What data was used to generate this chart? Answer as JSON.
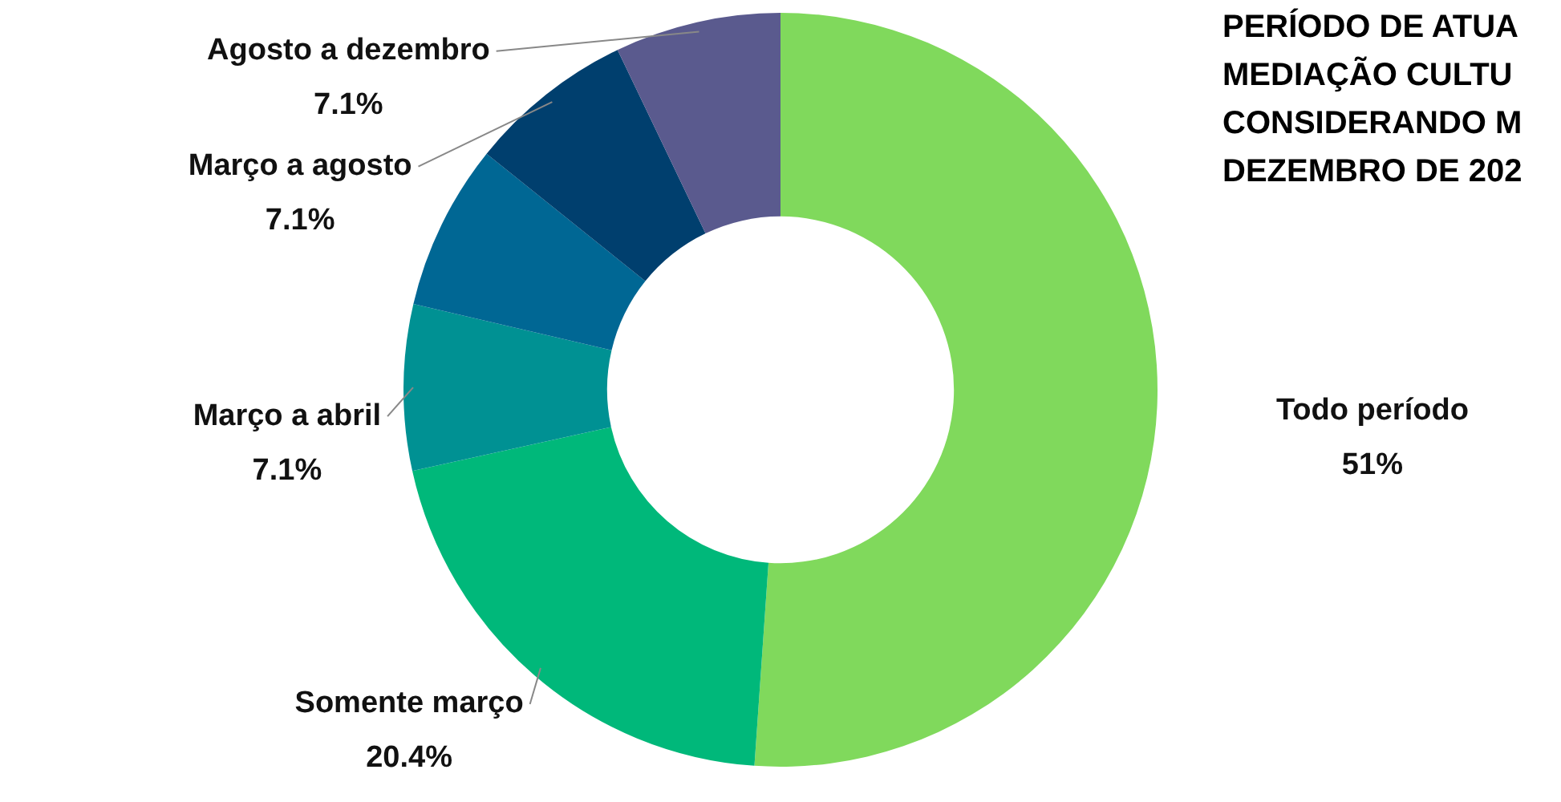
{
  "chart_data": {
    "type": "donut",
    "title": "PERÍODO DE ATUA\nMEDIAÇÃO CULTU\nCONSIDERANDO M\nDEZEMBRO DE 202",
    "categories": [
      "Todo período",
      "Somente março",
      "Março a abril",
      null,
      "Março a agosto",
      "Agosto a dezembro"
    ],
    "values": [
      51,
      20.4,
      7.1,
      7.1,
      7.1,
      7.1
    ],
    "value_labels": [
      "51%",
      "20.4%",
      "7.1%",
      null,
      "7.1%",
      "7.1%"
    ],
    "colors": [
      "#80d95c",
      "#00b87a",
      "#009193",
      "#006794",
      "#003f6e",
      "#5a5a8e"
    ],
    "legend": false
  }
}
